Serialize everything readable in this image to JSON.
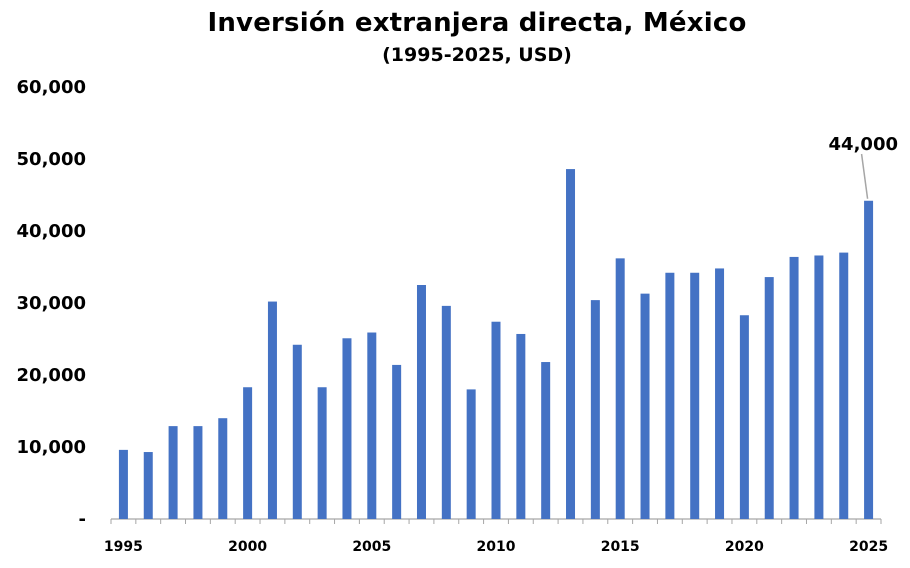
{
  "chart_data": {
    "type": "bar",
    "title": "Inversión extranjera directa, México",
    "subtitle": "(1995-2025, USD)",
    "xlabel": "",
    "ylabel": "",
    "ylim": [
      0,
      60000
    ],
    "y_ticks": [
      0,
      10000,
      20000,
      30000,
      40000,
      50000,
      60000
    ],
    "y_tick_labels": [
      "-",
      "10,000",
      "20,000",
      "30,000",
      "40,000",
      "50,000",
      "60,000"
    ],
    "x_tick_labels": [
      "1995",
      "2000",
      "2005",
      "2010",
      "2015",
      "2020",
      "2025"
    ],
    "categories": [
      "1995",
      "1996",
      "1997",
      "1998",
      "1999",
      "2000",
      "2001",
      "2002",
      "2003",
      "2004",
      "2005",
      "2006",
      "2007",
      "2008",
      "2009",
      "2010",
      "2011",
      "2012",
      "2013",
      "2014",
      "2015",
      "2016",
      "2017",
      "2018",
      "2019",
      "2020",
      "2021",
      "2022",
      "2023",
      "2024",
      "2025"
    ],
    "values": [
      9600,
      9300,
      12900,
      12900,
      14000,
      18300,
      30200,
      24200,
      18300,
      25100,
      25900,
      21400,
      32500,
      29600,
      18000,
      27400,
      25700,
      21800,
      48600,
      30400,
      36200,
      31300,
      34200,
      34200,
      34800,
      28300,
      33600,
      36400,
      36600,
      37000,
      44200
    ],
    "bar_color": "#4472C4",
    "grid": false,
    "legend": "none",
    "annotations": [
      {
        "category": "2025",
        "text": "44,000"
      }
    ]
  }
}
